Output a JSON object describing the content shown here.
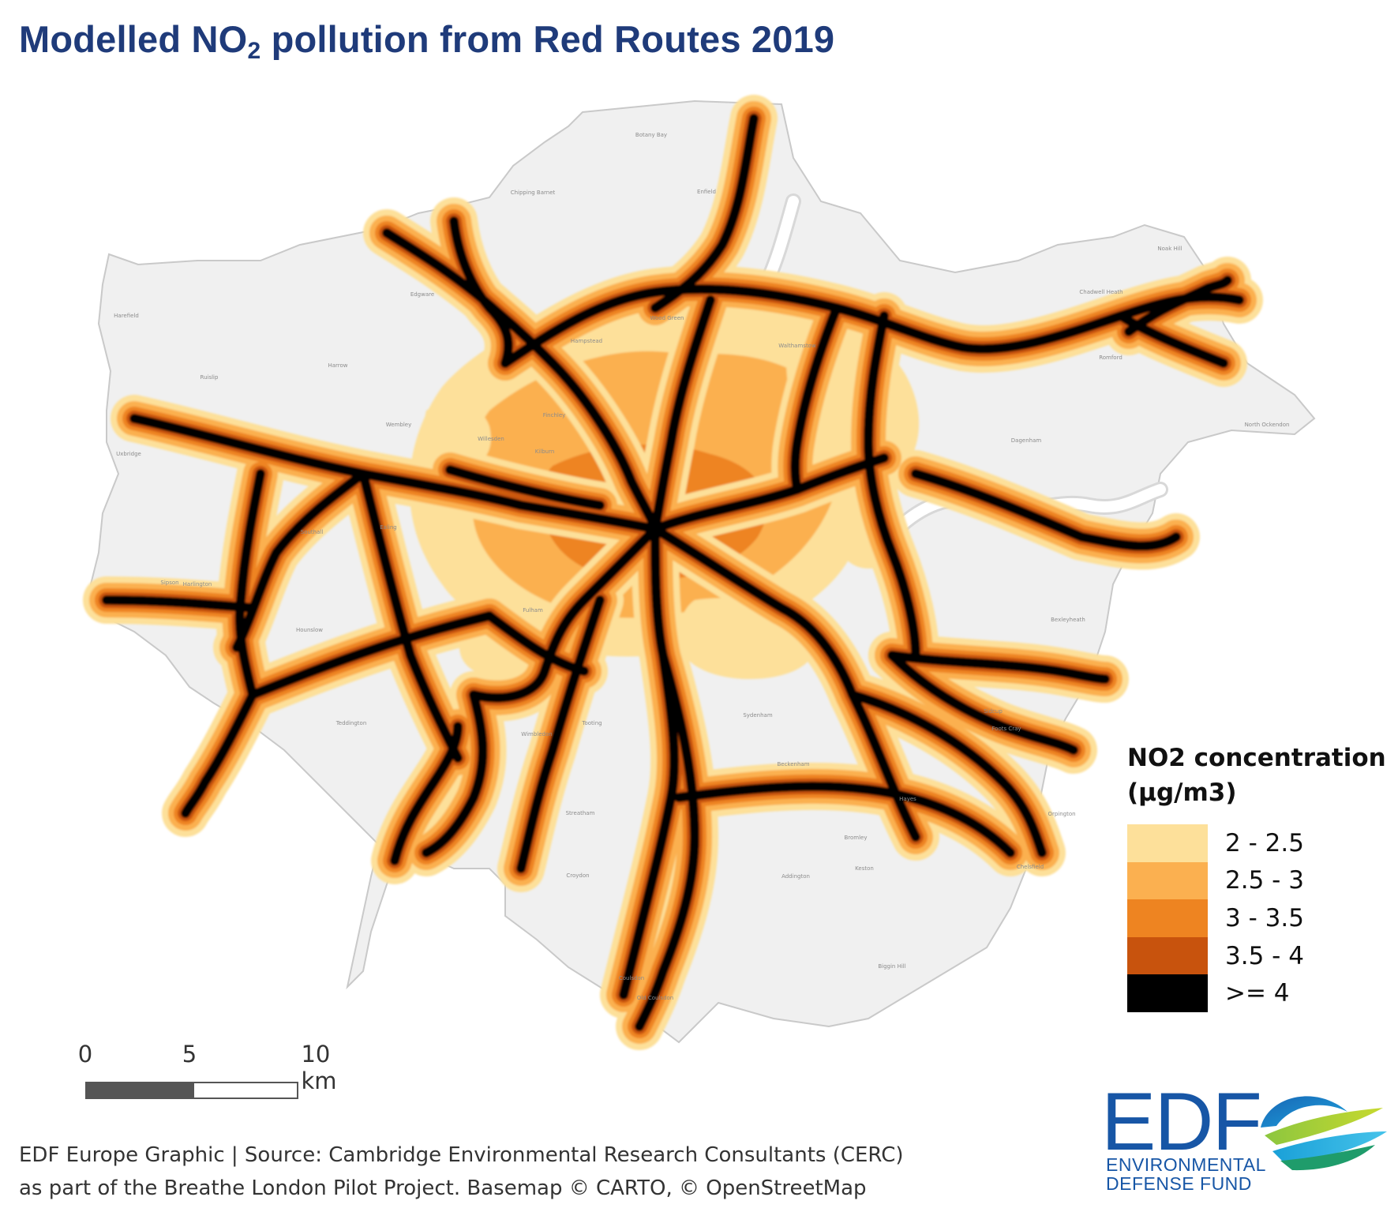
{
  "title": {
    "main": "Modelled NO",
    "sub": "2",
    "rest": " pollution from Red Routes 2019"
  },
  "legend": {
    "title_line1": "NO2 concentration",
    "title_line2": "(µg/m3)",
    "items": [
      {
        "label": "2 - 2.5",
        "color": "#fde09a"
      },
      {
        "label": "2.5 - 3",
        "color": "#fbb050"
      },
      {
        "label": "3 - 3.5",
        "color": "#ee8421"
      },
      {
        "label": "3.5 - 4",
        "color": "#c8530d"
      },
      {
        "label": ">= 4",
        "color": "#000000"
      }
    ]
  },
  "scale_bar": {
    "labels": [
      "0",
      "5",
      "10 km"
    ],
    "dark": "#555555",
    "light": "#ffffff"
  },
  "credits": {
    "line1": "EDF Europe Graphic | Source: Cambridge Environmental Research Consultants (CERC)",
    "line2": "as part of the Breathe London Pilot Project. Basemap © CARTO, © OpenStreetMap"
  },
  "logo": {
    "abbr": "EDF",
    "line1": "ENVIRONMENTAL",
    "line2": "DEFENSE FUND"
  },
  "places": [
    "Botany Bay",
    "Chipping Barnet",
    "Enfield",
    "Edgware",
    "Wood Green",
    "Walthamstow",
    "Harefield",
    "Ruislip",
    "Harrow",
    "Wembley",
    "Willesden",
    "Kilburn",
    "Hampstead",
    "Finchley",
    "Uxbridge",
    "Southall",
    "Ealing",
    "Hounslow",
    "Fulham",
    "Sydenham",
    "Wimbledon",
    "Teddington",
    "Romford",
    "Dagenham",
    "Bexleyheath",
    "Sidcup",
    "Foots Cray",
    "Orpington",
    "Chelsfield",
    "Croydon",
    "Coulsdon",
    "Old Coulsdon",
    "Biggin Hill",
    "Addington",
    "Bromley",
    "Sipson",
    "Harlington",
    "Keston",
    "North Ockendon",
    "Noak Hill",
    "Chadwell Heath",
    "Hayes",
    "Tooting",
    "Streatham",
    "Beckenham"
  ],
  "colors": {
    "land": "#f0f0f0",
    "outline": "#c9c9c9",
    "river": "#ffffff",
    "road": "#000000"
  }
}
